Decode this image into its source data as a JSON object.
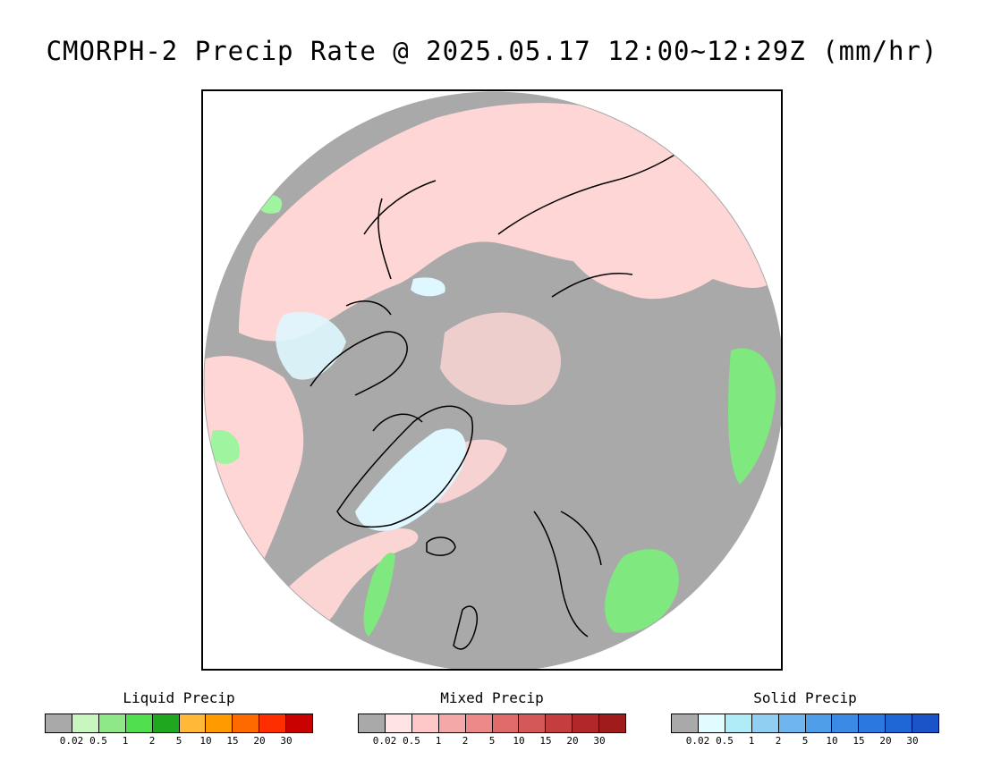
{
  "title": "CMORPH-2 Precip Rate @ 2025.05.17 12:00~12:29Z (mm/hr)",
  "map": {
    "projection": "north-polar-stereographic",
    "background_color": "#a9a9a9",
    "coastline_color": "#000000",
    "precip_regions": [
      {
        "name": "alaska-mixed",
        "type": "mixed",
        "color": "#ffd6d6"
      },
      {
        "name": "siberia-mixed",
        "type": "mixed",
        "color": "#ffd6d6"
      },
      {
        "name": "canada-mixed",
        "type": "mixed",
        "color": "#ffd6d6"
      },
      {
        "name": "greenland-solid",
        "type": "solid",
        "color": "#dff7ff"
      },
      {
        "name": "arctic-ocean-solid",
        "type": "solid",
        "color": "#dff7ff"
      },
      {
        "name": "europe-liquid",
        "type": "liquid",
        "color": "#7fe87f"
      },
      {
        "name": "north-atlantic-liquid",
        "type": "liquid",
        "color": "#7fe87f"
      },
      {
        "name": "siberia-liquid",
        "type": "liquid",
        "color": "#7fe87f"
      }
    ]
  },
  "legends": [
    {
      "title": "Liquid Precip",
      "colors": [
        "#a9a9a9",
        "#c8f5c0",
        "#8fe887",
        "#4fdf4f",
        "#1fa81f",
        "#ffb838",
        "#ff9a00",
        "#ff6a00",
        "#ff2e00",
        "#c80000"
      ],
      "ticks": [
        "0.02",
        "0.5",
        "1",
        "2",
        "5",
        "10",
        "15",
        "20",
        "30"
      ]
    },
    {
      "title": "Mixed Precip",
      "colors": [
        "#a9a9a9",
        "#ffe4e4",
        "#ffc8c8",
        "#f5a8a8",
        "#ec8a8a",
        "#e06a6a",
        "#d45858",
        "#c43e3e",
        "#b22828",
        "#a01c1c"
      ],
      "ticks": [
        "0.02",
        "0.5",
        "1",
        "2",
        "5",
        "10",
        "15",
        "20",
        "30"
      ]
    },
    {
      "title": "Solid Precip",
      "colors": [
        "#a9a9a9",
        "#e0fcff",
        "#b0ecf8",
        "#90cef2",
        "#70b6ee",
        "#4f9ee9",
        "#3a8ae6",
        "#2a78e0",
        "#1f66d6",
        "#1a54c8"
      ],
      "ticks": [
        "0.02",
        "0.5",
        "1",
        "2",
        "5",
        "10",
        "15",
        "20",
        "30"
      ]
    }
  ]
}
